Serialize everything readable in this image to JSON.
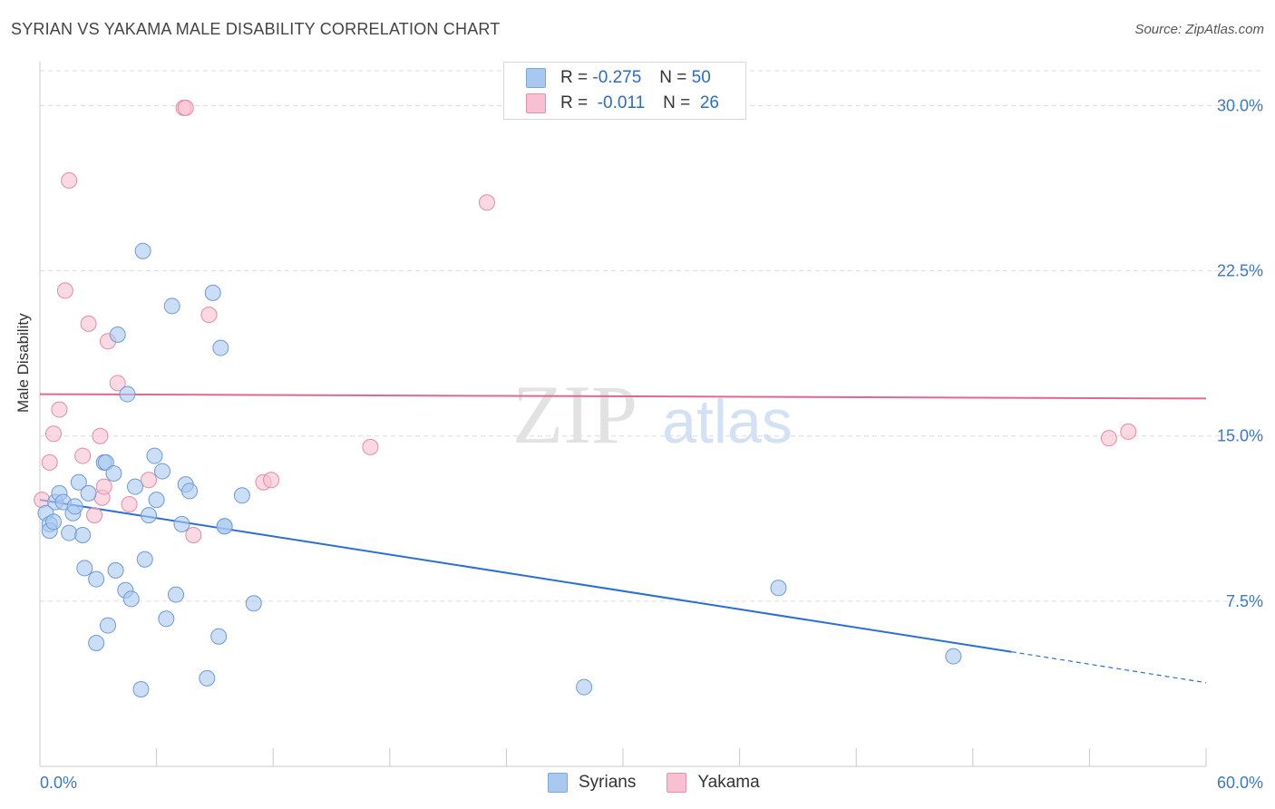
{
  "header": {
    "title": "SYRIAN VS YAKAMA MALE DISABILITY CORRELATION CHART",
    "source": "Source: ZipAtlas.com"
  },
  "watermark": {
    "zip": "ZIP",
    "atlas": "atlas"
  },
  "legend": {
    "rows": [
      {
        "r_label": "R =",
        "r_value": "-0.275",
        "n_label": "N =",
        "n_value": "50",
        "color": "#a8c8f0",
        "border": "#7aa6e0"
      },
      {
        "r_label": "R =",
        "r_value": "-0.011",
        "n_label": "N =",
        "n_value": "26",
        "color": "#f8c0d0",
        "border": "#e890aa"
      }
    ]
  },
  "bottom_legend": {
    "syrians": "Syrians",
    "yakama": "Yakama"
  },
  "colors": {
    "syrians_fill": "#a8c8f0",
    "syrians_stroke": "#6c9ad6",
    "syrians_line": "#2a6fd4",
    "yakama_fill": "#f8c0d0",
    "yakama_stroke": "#e68aa6",
    "yakama_line": "#e06890",
    "axis_label": "#3a78c9",
    "grid": "#dcdcdc"
  },
  "chart_data": {
    "type": "scatter",
    "title": "SYRIAN VS YAKAMA MALE DISABILITY CORRELATION CHART",
    "xlabel": "",
    "ylabel": "Male Disability",
    "xlim": [
      0,
      60
    ],
    "ylim": [
      0,
      31.5
    ],
    "x_tick_labels": [
      "0.0%",
      "60.0%"
    ],
    "y_ticks": [
      7.5,
      15.0,
      22.5,
      30.0
    ],
    "y_tick_labels": [
      "7.5%",
      "15.0%",
      "22.5%",
      "30.0%"
    ],
    "grid": true,
    "series": [
      {
        "name": "Syrians",
        "points": [
          [
            0.3,
            11.5
          ],
          [
            0.5,
            11.0
          ],
          [
            0.5,
            10.7
          ],
          [
            0.7,
            11.1
          ],
          [
            0.8,
            12.0
          ],
          [
            1.0,
            12.4
          ],
          [
            1.2,
            12.0
          ],
          [
            1.5,
            10.6
          ],
          [
            1.7,
            11.5
          ],
          [
            1.8,
            11.8
          ],
          [
            2.0,
            12.9
          ],
          [
            2.2,
            10.5
          ],
          [
            2.3,
            9.0
          ],
          [
            2.5,
            12.4
          ],
          [
            2.9,
            8.5
          ],
          [
            2.9,
            5.6
          ],
          [
            3.3,
            13.8
          ],
          [
            3.4,
            13.8
          ],
          [
            3.5,
            6.4
          ],
          [
            3.8,
            13.3
          ],
          [
            3.9,
            8.9
          ],
          [
            4.0,
            19.6
          ],
          [
            4.4,
            8.0
          ],
          [
            4.5,
            16.9
          ],
          [
            4.7,
            7.6
          ],
          [
            4.9,
            12.7
          ],
          [
            5.2,
            3.5
          ],
          [
            5.3,
            23.4
          ],
          [
            5.4,
            9.4
          ],
          [
            5.6,
            11.4
          ],
          [
            5.9,
            14.1
          ],
          [
            6.0,
            12.1
          ],
          [
            6.3,
            13.4
          ],
          [
            6.5,
            6.7
          ],
          [
            6.8,
            20.9
          ],
          [
            7.0,
            7.8
          ],
          [
            7.3,
            11.0
          ],
          [
            7.5,
            12.8
          ],
          [
            7.7,
            12.5
          ],
          [
            8.6,
            4.0
          ],
          [
            8.9,
            21.5
          ],
          [
            9.2,
            5.9
          ],
          [
            9.3,
            19.0
          ],
          [
            9.5,
            10.9
          ],
          [
            9.5,
            10.9
          ],
          [
            10.4,
            12.3
          ],
          [
            11.0,
            7.4
          ],
          [
            28.0,
            3.6
          ],
          [
            38.0,
            8.1
          ],
          [
            47.0,
            5.0
          ]
        ],
        "trend": {
          "x": [
            0,
            50,
            60
          ],
          "y": [
            12.1,
            5.2,
            3.8
          ],
          "solid_until": 50
        }
      },
      {
        "name": "Yakama",
        "points": [
          [
            0.1,
            12.1
          ],
          [
            0.5,
            13.8
          ],
          [
            0.7,
            15.1
          ],
          [
            1.0,
            16.2
          ],
          [
            1.3,
            21.6
          ],
          [
            1.5,
            26.6
          ],
          [
            2.2,
            14.1
          ],
          [
            2.5,
            20.1
          ],
          [
            2.8,
            11.4
          ],
          [
            3.1,
            15.0
          ],
          [
            3.2,
            12.2
          ],
          [
            3.3,
            12.7
          ],
          [
            3.5,
            19.3
          ],
          [
            4.0,
            17.4
          ],
          [
            4.6,
            11.9
          ],
          [
            5.6,
            13.0
          ],
          [
            7.4,
            29.9
          ],
          [
            7.5,
            29.9
          ],
          [
            7.9,
            10.5
          ],
          [
            8.7,
            20.5
          ],
          [
            11.5,
            12.9
          ],
          [
            11.9,
            13.0
          ],
          [
            17.0,
            14.5
          ],
          [
            23.0,
            25.6
          ],
          [
            55.0,
            14.9
          ],
          [
            56.0,
            15.2
          ]
        ],
        "trend": {
          "x": [
            0,
            60
          ],
          "y": [
            16.9,
            16.7
          ]
        }
      }
    ]
  }
}
